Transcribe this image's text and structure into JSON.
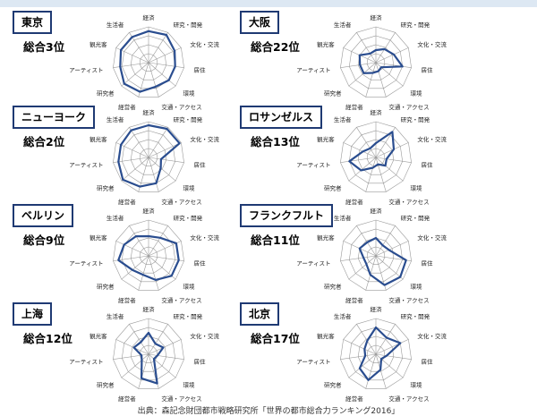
{
  "footer": "出典：森記念財団都市戦略研究所「世界の都市総合力ランキング2016」",
  "chart_data": [
    {
      "type": "radar",
      "title": "東京",
      "rank": "総合3位",
      "axes": [
        "経済",
        "研究・開発",
        "文化・交流",
        "居住",
        "環境",
        "交通・アクセス",
        "経営者",
        "研究者",
        "アーティスト",
        "観光客",
        "生活者"
      ],
      "values": [
        0.88,
        0.92,
        0.8,
        0.75,
        0.75,
        0.7,
        0.85,
        0.9,
        0.8,
        0.85,
        0.85
      ],
      "max": 1
    },
    {
      "type": "radar",
      "title": "大阪",
      "rank": "総合22位",
      "axes": [
        "経済",
        "研究・開発",
        "文化・交流",
        "居住",
        "環境",
        "交通・アクセス",
        "経営者",
        "研究者",
        "アーティスト",
        "観光客",
        "生活者"
      ],
      "values": [
        0.35,
        0.45,
        0.55,
        0.75,
        0.2,
        0.25,
        0.3,
        0.45,
        0.45,
        0.5,
        0.3
      ],
      "max": 1
    },
    {
      "type": "radar",
      "title": "ニューヨーク",
      "rank": "総合2位",
      "axes": [
        "経済",
        "研究・開発",
        "文化・交流",
        "居住",
        "環境",
        "交通・アクセス",
        "経営者",
        "研究者",
        "アーティスト",
        "観光客",
        "生活者"
      ],
      "values": [
        0.9,
        0.95,
        0.95,
        0.35,
        0.45,
        0.75,
        0.85,
        0.95,
        0.85,
        0.85,
        0.9
      ],
      "max": 1
    },
    {
      "type": "radar",
      "title": "ロサンゼルス",
      "rank": "総合13位",
      "axes": [
        "経済",
        "研究・開発",
        "文化・交流",
        "居住",
        "環境",
        "交通・アクセス",
        "経営者",
        "研究者",
        "アーティスト",
        "観光客",
        "生活者"
      ],
      "values": [
        0.4,
        0.85,
        0.55,
        0.3,
        0.35,
        0.2,
        0.3,
        0.55,
        0.75,
        0.4,
        0.3
      ],
      "max": 1
    },
    {
      "type": "radar",
      "title": "ベルリン",
      "rank": "総合9位",
      "axes": [
        "経済",
        "研究・開発",
        "文化・交流",
        "居住",
        "環境",
        "交通・アクセス",
        "経営者",
        "研究者",
        "アーティスト",
        "観光客",
        "生活者"
      ],
      "values": [
        0.55,
        0.6,
        0.85,
        0.85,
        0.85,
        0.7,
        0.55,
        0.6,
        0.85,
        0.75,
        0.65
      ],
      "max": 1
    },
    {
      "type": "radar",
      "title": "フランクフルト",
      "rank": "総合11位",
      "axes": [
        "経済",
        "研究・開発",
        "文化・交流",
        "居住",
        "環境",
        "交通・アクセス",
        "経営者",
        "研究者",
        "アーティスト",
        "観光客",
        "生活者"
      ],
      "values": [
        0.5,
        0.35,
        0.4,
        0.85,
        0.9,
        0.85,
        0.55,
        0.35,
        0.35,
        0.5,
        0.45
      ],
      "max": 1
    },
    {
      "type": "radar",
      "title": "上海",
      "rank": "総合12位",
      "axes": [
        "経済",
        "研究・開発",
        "文化・交流",
        "居住",
        "環境",
        "交通・アクセス",
        "経営者",
        "研究者",
        "アーティスト",
        "観光客",
        "生活者"
      ],
      "values": [
        0.6,
        0.35,
        0.45,
        0.25,
        0.2,
        0.85,
        0.7,
        0.25,
        0.2,
        0.45,
        0.4
      ],
      "max": 1
    },
    {
      "type": "radar",
      "title": "北京",
      "rank": "総合17位",
      "axes": [
        "経済",
        "研究・開発",
        "文化・交流",
        "居住",
        "環境",
        "交通・アクセス",
        "経営者",
        "研究者",
        "アーティスト",
        "観光客",
        "生活者"
      ],
      "values": [
        0.75,
        0.55,
        0.75,
        0.3,
        0.2,
        0.45,
        0.75,
        0.6,
        0.3,
        0.35,
        0.45
      ],
      "max": 1
    }
  ]
}
